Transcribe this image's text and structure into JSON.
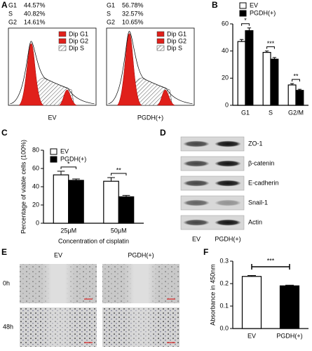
{
  "panel_labels": [
    "A",
    "B",
    "C",
    "D",
    "E",
    "F"
  ],
  "panel_a": {
    "samples": [
      {
        "label": "EV",
        "stats": [
          {
            "phase": "G1",
            "value": "44.57%"
          },
          {
            "phase": "S",
            "value": "40.82%"
          },
          {
            "phase": "G2",
            "value": "14.61%"
          }
        ],
        "legend": [
          "Dip G1",
          "Dip G2",
          "Dip S"
        ]
      },
      {
        "label": "PGDH(+)",
        "stats": [
          {
            "phase": "G1",
            "value": "56.78%"
          },
          {
            "phase": "S",
            "value": "32.57%"
          },
          {
            "phase": "G2",
            "value": "10.65%"
          }
        ],
        "legend": [
          "Dip G1",
          "Dip G2",
          "Dip S"
        ]
      }
    ]
  },
  "chart_data": [
    {
      "type": "bar",
      "categories": [
        "G1",
        "S",
        "G2/M"
      ],
      "series": [
        {
          "name": "EV",
          "color": "#ffffff",
          "values": [
            47,
            39,
            15
          ],
          "errors": [
            1.5,
            1,
            1
          ]
        },
        {
          "name": "PGDH(+)",
          "color": "#000000",
          "values": [
            55,
            34,
            11
          ],
          "errors": [
            2,
            1.2,
            0.8
          ]
        }
      ],
      "ylim": [
        0,
        60
      ],
      "yticks": [
        0,
        20,
        40,
        60
      ],
      "annotations": [
        "*",
        "***",
        "**"
      ],
      "legend": "top"
    },
    {
      "type": "bar",
      "categories": [
        "25μM",
        "50μM"
      ],
      "series": [
        {
          "name": "EV",
          "color": "#ffffff",
          "values": [
            53,
            46
          ],
          "errors": [
            4,
            4
          ]
        },
        {
          "name": "PGDH(+)",
          "color": "#000000",
          "values": [
            47,
            29
          ],
          "errors": [
            1.5,
            1.5
          ]
        }
      ],
      "ylim": [
        0,
        80
      ],
      "yticks": [
        0,
        20,
        40,
        60,
        80
      ],
      "annotations": [
        "*",
        "**"
      ],
      "legend": "upper left",
      "ylabel": "Percentage of viable cells (100%)",
      "xlabel": "Concentration of cisplatin"
    },
    {
      "type": "bar",
      "categories": [
        "EV",
        "PGDH(+)"
      ],
      "values": [
        0.232,
        0.19
      ],
      "errors": [
        0.004,
        0.003
      ],
      "colors": [
        "#ffffff",
        "#000000"
      ],
      "ylim": [
        0,
        0.3
      ],
      "yticks": [
        {
          "value": 0,
          "label": "0.0"
        },
        0.1,
        0.2,
        0.3
      ],
      "annotation": "***",
      "ylabel": "Absorbance in 450nm"
    }
  ],
  "panel_d": {
    "proteins": [
      "ZO-1",
      "β-catenin",
      "E-cadherin",
      "Snail-1",
      "Actin"
    ],
    "lanes": [
      "EV",
      "PGDH(+)"
    ]
  },
  "panel_e": {
    "columns": [
      "EV",
      "PGDH(+)"
    ],
    "rows": [
      "0h",
      "48h"
    ]
  }
}
